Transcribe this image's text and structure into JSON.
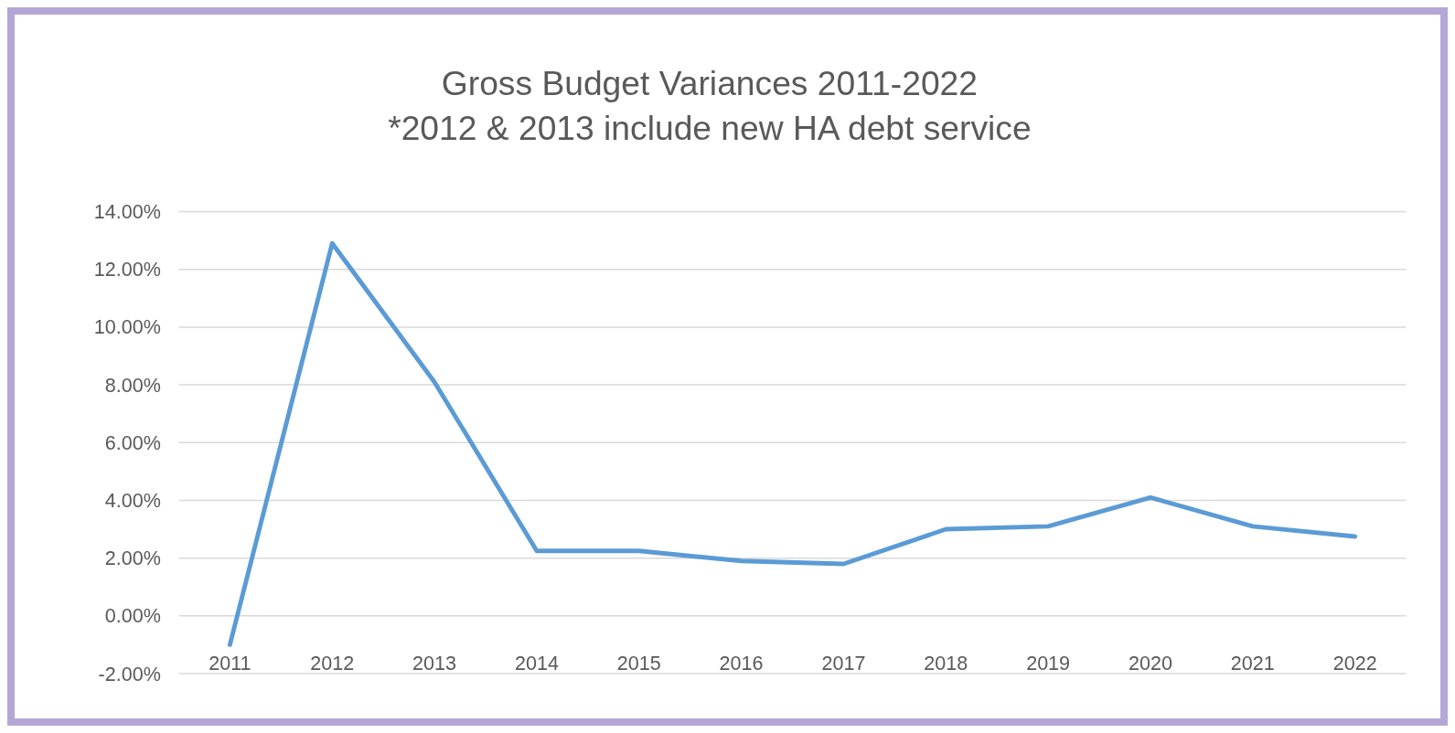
{
  "chart_data": {
    "type": "line",
    "title": "Gross Budget Variances 2011-2022",
    "subtitle": "*2012 & 2013 include new HA debt service",
    "categories": [
      "2011",
      "2012",
      "2013",
      "2014",
      "2015",
      "2016",
      "2017",
      "2018",
      "2019",
      "2020",
      "2021",
      "2022"
    ],
    "series": [
      {
        "color": "#5b9bd5",
        "values": [
          -1.0,
          12.9,
          8.1,
          2.25,
          2.25,
          1.9,
          1.8,
          3.0,
          3.1,
          4.1,
          3.1,
          2.75
        ]
      }
    ],
    "ylim": [
      -2,
      14
    ],
    "yticks": [
      {
        "value": -2,
        "label": "-2.00%"
      },
      {
        "value": 0,
        "label": "0.00%"
      },
      {
        "value": 2,
        "label": "2.00%"
      },
      {
        "value": 4,
        "label": "4.00%"
      },
      {
        "value": 6,
        "label": "6.00%"
      },
      {
        "value": 8,
        "label": "8.00%"
      },
      {
        "value": 10,
        "label": "10.00%"
      },
      {
        "value": 12,
        "label": "12.00%"
      },
      {
        "value": 14,
        "label": "14.00%"
      }
    ],
    "grid": "y"
  }
}
